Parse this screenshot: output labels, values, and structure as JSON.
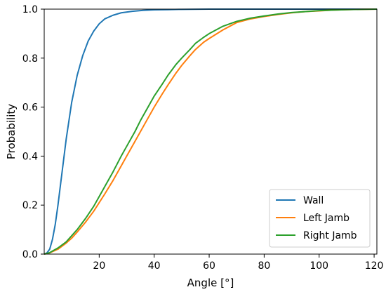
{
  "chart_data": {
    "type": "line",
    "title": "",
    "xlabel": "Angle [°]",
    "ylabel": "Probability",
    "xlim": [
      0,
      121
    ],
    "ylim": [
      0,
      1.0
    ],
    "xticks": [
      20,
      40,
      60,
      80,
      100,
      120
    ],
    "yticks": [
      0.0,
      0.2,
      0.4,
      0.6,
      0.8,
      1.0
    ],
    "xtick_labels": [
      "20",
      "40",
      "60",
      "80",
      "100",
      "120"
    ],
    "ytick_labels": [
      "0.0",
      "0.2",
      "0.4",
      "0.6",
      "0.8",
      "1.0"
    ],
    "grid": false,
    "legend_position": "bottom-right",
    "series": [
      {
        "name": "Wall",
        "color": "#1f77b4",
        "x": [
          0,
          1,
          2,
          3,
          4,
          5,
          6,
          7,
          8,
          10,
          12,
          14,
          16,
          18,
          20,
          22,
          25,
          28,
          32,
          36,
          40,
          45,
          50,
          60,
          70,
          80,
          100,
          121
        ],
        "y": [
          0.0,
          0.005,
          0.02,
          0.06,
          0.12,
          0.2,
          0.29,
          0.38,
          0.47,
          0.62,
          0.73,
          0.81,
          0.87,
          0.91,
          0.94,
          0.96,
          0.975,
          0.985,
          0.991,
          0.995,
          0.997,
          0.998,
          0.999,
          1.0,
          1.0,
          1.0,
          1.0,
          1.0
        ]
      },
      {
        "name": "Left Jamb",
        "color": "#ff7f0e",
        "x": [
          0,
          2,
          5,
          8,
          10,
          12,
          15,
          18,
          20,
          22,
          25,
          28,
          30,
          33,
          35,
          38,
          40,
          43,
          45,
          48,
          50,
          53,
          55,
          58,
          60,
          65,
          70,
          75,
          80,
          85,
          90,
          95,
          100,
          105,
          110,
          115,
          121
        ],
        "y": [
          0.0,
          0.005,
          0.02,
          0.045,
          0.065,
          0.09,
          0.13,
          0.175,
          0.21,
          0.245,
          0.3,
          0.36,
          0.4,
          0.46,
          0.5,
          0.56,
          0.6,
          0.655,
          0.69,
          0.74,
          0.77,
          0.81,
          0.835,
          0.865,
          0.88,
          0.915,
          0.945,
          0.96,
          0.97,
          0.978,
          0.985,
          0.99,
          0.993,
          0.996,
          0.998,
          0.999,
          1.0
        ]
      },
      {
        "name": "Right Jamb",
        "color": "#2ca02c",
        "x": [
          0,
          2,
          5,
          8,
          10,
          12,
          15,
          18,
          20,
          22,
          25,
          28,
          30,
          33,
          35,
          38,
          40,
          43,
          45,
          48,
          50,
          53,
          55,
          58,
          60,
          65,
          70,
          75,
          80,
          85,
          90,
          95,
          100,
          105,
          110,
          115,
          121
        ],
        "y": [
          0.0,
          0.006,
          0.025,
          0.05,
          0.075,
          0.1,
          0.145,
          0.195,
          0.235,
          0.275,
          0.335,
          0.4,
          0.44,
          0.5,
          0.545,
          0.605,
          0.645,
          0.695,
          0.73,
          0.775,
          0.8,
          0.835,
          0.86,
          0.885,
          0.9,
          0.93,
          0.95,
          0.963,
          0.972,
          0.98,
          0.986,
          0.99,
          0.994,
          0.996,
          0.998,
          0.999,
          1.0
        ]
      }
    ]
  }
}
